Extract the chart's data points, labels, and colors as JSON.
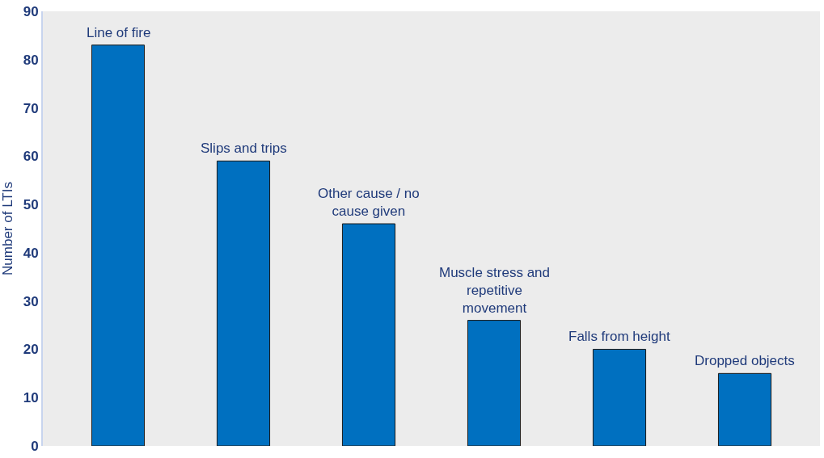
{
  "chart_data": {
    "type": "bar",
    "ylabel": "Number of LTIs",
    "categories": [
      "Line of fire",
      "Slips and trips",
      "Other cause / no cause given",
      "Muscle stress and repetitive movement",
      "Falls from height",
      "Dropped objects"
    ],
    "values": [
      83,
      59,
      46,
      26,
      20,
      15
    ],
    "color": "#0070c0",
    "ylim": [
      0,
      90
    ],
    "yticks": [
      0,
      10,
      20,
      30,
      40,
      50,
      60,
      70,
      80,
      90
    ],
    "grid": false,
    "tick_labels": "y"
  }
}
